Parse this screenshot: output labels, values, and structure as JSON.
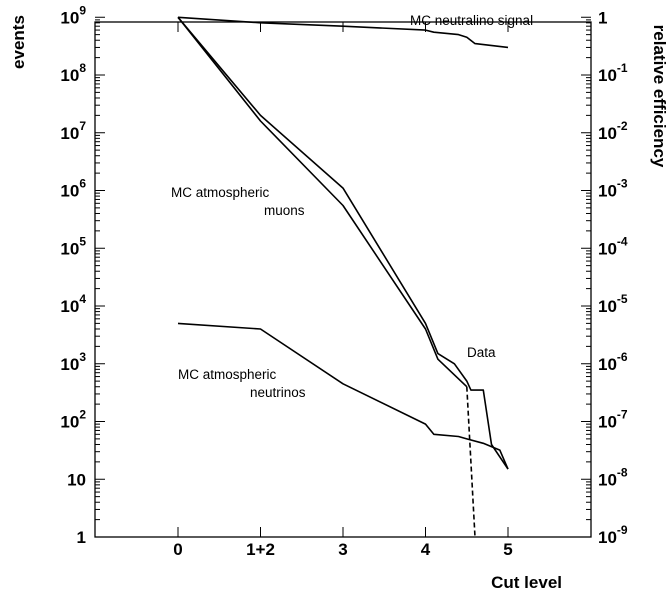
{
  "chart_data": {
    "type": "line",
    "xlabel": "Cut level",
    "ylabel": "events",
    "ylabel_right": "relative efficiency",
    "y_scale": "log",
    "ylim": [
      1,
      1000000000
    ],
    "xlim": [
      -1,
      6
    ],
    "x_ticks": [
      {
        "x": 0,
        "label": "0"
      },
      {
        "x": 1,
        "label": "1+2"
      },
      {
        "x": 2,
        "label": "3"
      },
      {
        "x": 3,
        "label": "4"
      },
      {
        "x": 4,
        "label": "5"
      }
    ],
    "y_ticks_left": [
      {
        "v": 1000000000,
        "base": "10",
        "exp": "9"
      },
      {
        "v": 100000000,
        "base": "10",
        "exp": "8"
      },
      {
        "v": 10000000,
        "base": "10",
        "exp": "7"
      },
      {
        "v": 1000000,
        "base": "10",
        "exp": "6"
      },
      {
        "v": 100000,
        "base": "10",
        "exp": "5"
      },
      {
        "v": 10000,
        "base": "10",
        "exp": "4"
      },
      {
        "v": 1000,
        "base": "10",
        "exp": "3"
      },
      {
        "v": 100,
        "base": "10",
        "exp": "2"
      },
      {
        "v": 10,
        "base": "10",
        "exp": ""
      },
      {
        "v": 1,
        "base": "1",
        "exp": ""
      }
    ],
    "y_ticks_right": [
      {
        "v": 1000000000,
        "base": "1",
        "exp": ""
      },
      {
        "v": 100000000,
        "base": "10",
        "exp": "-1"
      },
      {
        "v": 10000000,
        "base": "10",
        "exp": "-2"
      },
      {
        "v": 1000000,
        "base": "10",
        "exp": "-3"
      },
      {
        "v": 100000,
        "base": "10",
        "exp": "-4"
      },
      {
        "v": 10000,
        "base": "10",
        "exp": "-5"
      },
      {
        "v": 1000,
        "base": "10",
        "exp": "-6"
      },
      {
        "v": 100,
        "base": "10",
        "exp": "-7"
      },
      {
        "v": 10,
        "base": "10",
        "exp": "-8"
      },
      {
        "v": 1,
        "base": "10",
        "exp": "-9"
      }
    ],
    "series": [
      {
        "name": "MC neutralino signal",
        "dashed": false,
        "x": [
          0,
          1,
          2,
          3,
          3.1,
          3.4,
          3.5,
          3.6,
          4
        ],
        "y": [
          1000000000,
          800000000,
          700000000,
          600000000,
          550000000,
          500000000,
          450000000,
          350000000,
          300000000
        ]
      },
      {
        "name": "MC atmospheric muons",
        "dashed": false,
        "x": [
          0,
          1,
          2,
          3,
          3.15,
          3.5
        ],
        "y": [
          1000000000,
          16000000,
          550000,
          4000,
          1200,
          400
        ]
      },
      {
        "name": "Data",
        "dashed": false,
        "x": [
          0,
          1,
          2,
          3,
          3.15,
          3.35,
          3.5,
          3.55,
          3.7,
          3.8,
          4
        ],
        "y": [
          1000000000,
          20000000,
          1100000,
          5000,
          1500,
          1000,
          500,
          350,
          350,
          40,
          15
        ]
      },
      {
        "name": "MC atmospheric neutrinos",
        "dashed": false,
        "x": [
          0,
          1,
          2,
          3,
          3.1,
          3.4,
          3.5,
          3.7,
          3.9,
          4
        ],
        "y": [
          5000,
          4000,
          450,
          90,
          60,
          55,
          50,
          42,
          32,
          15
        ]
      },
      {
        "name": "",
        "dashed": true,
        "x": [
          3.5,
          3.6
        ],
        "y": [
          400,
          1
        ]
      }
    ],
    "annotations": [
      {
        "id": "neutralino",
        "lines": [
          "MC neutralino signal"
        ]
      },
      {
        "id": "muons",
        "lines": [
          "MC atmospheric",
          "muons"
        ]
      },
      {
        "id": "neutrinos",
        "lines": [
          "MC atmospheric",
          "neutrinos"
        ]
      },
      {
        "id": "data",
        "lines": [
          "Data"
        ]
      }
    ],
    "grid": false,
    "colors": {
      "line": "#000000",
      "background": "#ffffff"
    }
  }
}
